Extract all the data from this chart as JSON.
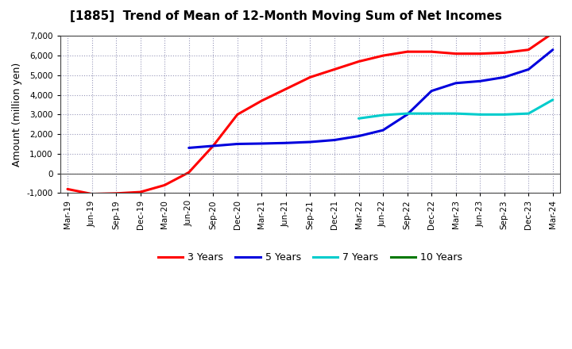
{
  "title": "[1885]  Trend of Mean of 12-Month Moving Sum of Net Incomes",
  "ylabel": "Amount (million yen)",
  "ylim": [
    -1000,
    7000
  ],
  "yticks": [
    -1000,
    0,
    1000,
    2000,
    3000,
    4000,
    5000,
    6000,
    7000
  ],
  "background_color": "#ffffff",
  "series": {
    "3 Years": {
      "color": "#ff0000",
      "data": [
        [
          "Mar-19",
          -800
        ],
        [
          "Jun-19",
          -1050
        ],
        [
          "Sep-19",
          -1020
        ],
        [
          "Dec-19",
          -950
        ],
        [
          "Mar-20",
          -600
        ],
        [
          "Jun-20",
          50
        ],
        [
          "Sep-20",
          1400
        ],
        [
          "Dec-20",
          3000
        ],
        [
          "Mar-21",
          3700
        ],
        [
          "Jun-21",
          4300
        ],
        [
          "Sep-21",
          4900
        ],
        [
          "Dec-21",
          5300
        ],
        [
          "Mar-22",
          5700
        ],
        [
          "Jun-22",
          6000
        ],
        [
          "Sep-22",
          6200
        ],
        [
          "Dec-22",
          6200
        ],
        [
          "Mar-23",
          6100
        ],
        [
          "Jun-23",
          6100
        ],
        [
          "Sep-23",
          6150
        ],
        [
          "Dec-23",
          6300
        ],
        [
          "Mar-24",
          7150
        ]
      ]
    },
    "5 Years": {
      "color": "#0000dd",
      "data": [
        [
          "Jun-20",
          1300
        ],
        [
          "Sep-20",
          1400
        ],
        [
          "Dec-20",
          1500
        ],
        [
          "Mar-21",
          1520
        ],
        [
          "Jun-21",
          1550
        ],
        [
          "Sep-21",
          1600
        ],
        [
          "Dec-21",
          1700
        ],
        [
          "Mar-22",
          1900
        ],
        [
          "Jun-22",
          2200
        ],
        [
          "Sep-22",
          3000
        ],
        [
          "Dec-22",
          4200
        ],
        [
          "Mar-23",
          4600
        ],
        [
          "Jun-23",
          4700
        ],
        [
          "Sep-23",
          4900
        ],
        [
          "Dec-23",
          5300
        ],
        [
          "Mar-24",
          6300
        ]
      ]
    },
    "7 Years": {
      "color": "#00cccc",
      "data": [
        [
          "Mar-22",
          2800
        ],
        [
          "Jun-22",
          2970
        ],
        [
          "Sep-22",
          3050
        ],
        [
          "Dec-22",
          3050
        ],
        [
          "Mar-23",
          3050
        ],
        [
          "Jun-23",
          3000
        ],
        [
          "Sep-23",
          3000
        ],
        [
          "Dec-23",
          3050
        ],
        [
          "Mar-24",
          3750
        ]
      ]
    },
    "10 Years": {
      "color": "#007700",
      "data": []
    }
  },
  "xtick_labels": [
    "Mar-19",
    "Jun-19",
    "Sep-19",
    "Dec-19",
    "Mar-20",
    "Jun-20",
    "Sep-20",
    "Dec-20",
    "Mar-21",
    "Jun-21",
    "Sep-21",
    "Dec-21",
    "Mar-22",
    "Jun-22",
    "Sep-22",
    "Dec-22",
    "Mar-23",
    "Jun-23",
    "Sep-23",
    "Dec-23",
    "Mar-24"
  ],
  "legend_colors": {
    "3 Years": "#ff0000",
    "5 Years": "#0000dd",
    "7 Years": "#00cccc",
    "10 Years": "#007700"
  }
}
